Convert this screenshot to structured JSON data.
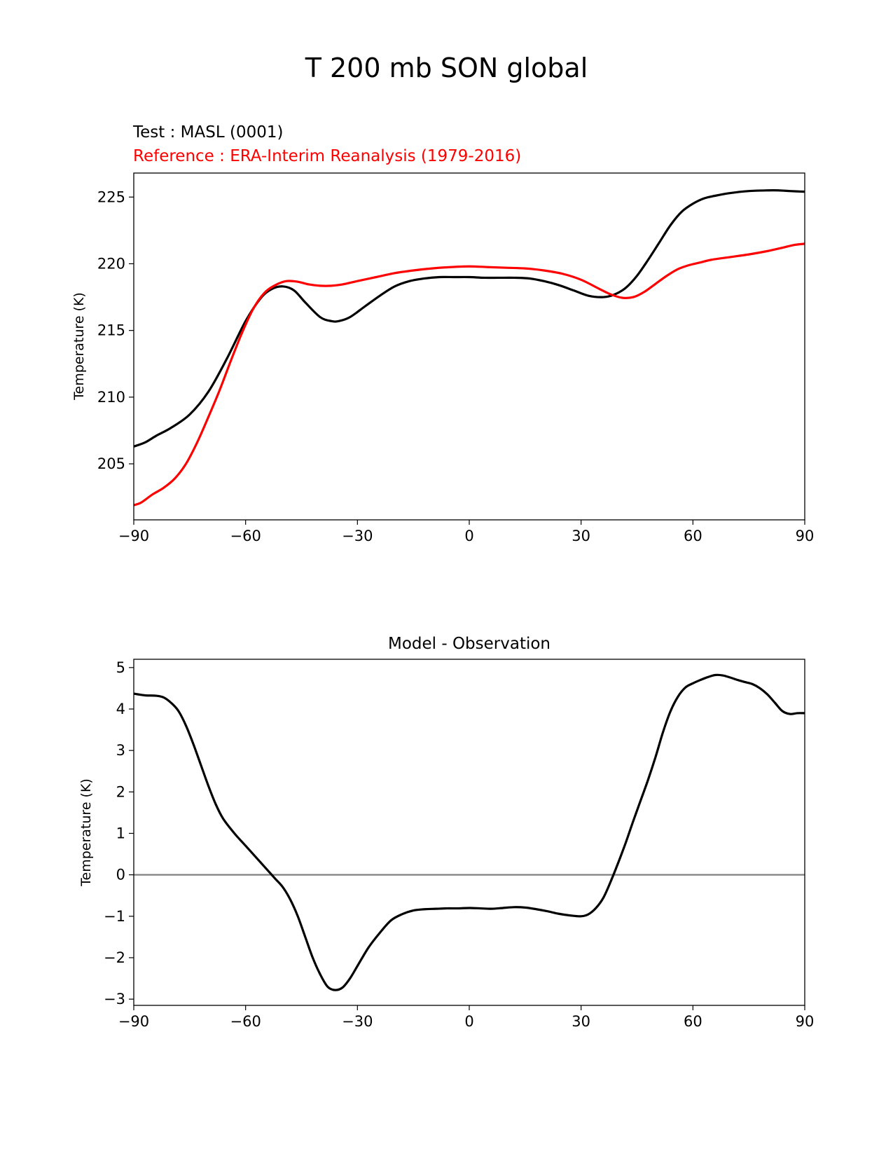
{
  "figure": {
    "title": "T 200 mb SON global"
  },
  "chart_data": [
    {
      "type": "line",
      "title_left": "Test : MASL (0001)",
      "title_left_color": "#000000",
      "title_left_2": "Reference : ERA-Interim Reanalysis (1979-2016)",
      "title_left_2_color": "#ff0000",
      "xlabel": "",
      "ylabel": "Temperature (K)",
      "xlim": [
        -90,
        90
      ],
      "ylim": [
        200.8,
        226.8
      ],
      "xticks": [
        -90,
        -60,
        -30,
        0,
        30,
        60,
        90
      ],
      "xtick_labels": [
        "−90",
        "−60",
        "−30",
        "0",
        "30",
        "60",
        "90"
      ],
      "yticks": [
        205,
        210,
        215,
        220,
        225
      ],
      "ytick_labels": [
        "205",
        "210",
        "215",
        "220",
        "225"
      ],
      "grid": false,
      "series": [
        {
          "color": "#000000",
          "x": [
            -90,
            -87,
            -84,
            -80,
            -75,
            -70,
            -65,
            -60,
            -56,
            -53,
            -50,
            -47,
            -44,
            -40,
            -37,
            -35,
            -32,
            -28,
            -24,
            -20,
            -16,
            -12,
            -8,
            -4,
            0,
            4,
            8,
            12,
            16,
            20,
            24,
            28,
            32,
            36,
            39,
            42,
            45,
            48,
            51,
            54,
            57,
            60,
            63,
            66,
            70,
            75,
            80,
            83,
            86,
            90
          ],
          "y": [
            206.3,
            206.6,
            207.1,
            207.7,
            208.7,
            210.4,
            212.9,
            215.7,
            217.4,
            218.1,
            218.3,
            218.0,
            217.1,
            216.0,
            215.7,
            215.7,
            216.0,
            216.8,
            217.6,
            218.3,
            218.7,
            218.9,
            219.0,
            219.0,
            219.0,
            218.95,
            218.95,
            218.95,
            218.9,
            218.7,
            218.4,
            218.0,
            217.6,
            217.5,
            217.7,
            218.2,
            219.1,
            220.3,
            221.6,
            222.9,
            223.9,
            224.5,
            224.9,
            225.1,
            225.3,
            225.45,
            225.5,
            225.5,
            225.45,
            225.4
          ]
        },
        {
          "color": "#ff0000",
          "x": [
            -90,
            -88,
            -85,
            -82,
            -79,
            -76,
            -73,
            -70,
            -67,
            -64,
            -61,
            -58,
            -55,
            -52,
            -49,
            -46,
            -43,
            -40,
            -37,
            -34,
            -30,
            -25,
            -20,
            -15,
            -10,
            -5,
            0,
            5,
            10,
            15,
            20,
            25,
            30,
            35,
            38,
            41,
            44,
            47,
            50,
            53,
            56,
            59,
            62,
            65,
            70,
            75,
            80,
            84,
            87,
            90
          ],
          "y": [
            201.9,
            202.1,
            202.7,
            203.2,
            203.9,
            205.0,
            206.6,
            208.5,
            210.5,
            212.7,
            214.8,
            216.6,
            217.8,
            218.4,
            218.7,
            218.65,
            218.45,
            218.35,
            218.35,
            218.45,
            218.7,
            219.0,
            219.3,
            219.5,
            219.65,
            219.75,
            219.8,
            219.75,
            219.7,
            219.65,
            219.5,
            219.25,
            218.8,
            218.1,
            217.7,
            217.45,
            217.5,
            217.9,
            218.5,
            219.1,
            219.6,
            219.9,
            220.1,
            220.3,
            220.5,
            220.7,
            220.95,
            221.2,
            221.4,
            221.5
          ]
        }
      ]
    },
    {
      "type": "line",
      "title": "Model - Observation",
      "xlabel": "",
      "ylabel": "Temperature (K)",
      "xlim": [
        -90,
        90
      ],
      "ylim": [
        -3.15,
        5.2
      ],
      "xticks": [
        -90,
        -60,
        -30,
        0,
        30,
        60,
        90
      ],
      "xtick_labels": [
        "−90",
        "−60",
        "−30",
        "0",
        "30",
        "60",
        "90"
      ],
      "yticks": [
        5,
        4,
        3,
        2,
        1,
        0,
        -1,
        -2,
        -3
      ],
      "ytick_labels": [
        "5",
        "4",
        "3",
        "2",
        "1",
        "0",
        "−1",
        "−2",
        "−3"
      ],
      "zero_line": {
        "y": 0,
        "color": "#808080"
      },
      "grid": false,
      "series": [
        {
          "color": "#000000",
          "x": [
            -90,
            -87,
            -84,
            -82,
            -80,
            -78,
            -76,
            -74,
            -72,
            -70,
            -68,
            -66,
            -63,
            -60,
            -57,
            -54,
            -52,
            -50,
            -48,
            -46,
            -44,
            -42,
            -40,
            -38,
            -36,
            -34,
            -32,
            -30,
            -27,
            -24,
            -21,
            -18,
            -15,
            -12,
            -9,
            -6,
            -3,
            0,
            3,
            6,
            9,
            12,
            15,
            18,
            21,
            24,
            27,
            30,
            32,
            34,
            36,
            38,
            40,
            42,
            44,
            46,
            48,
            50,
            52,
            54,
            56,
            58,
            60,
            62,
            64,
            66,
            68,
            70,
            72,
            74,
            76,
            78,
            80,
            82,
            84,
            86,
            88,
            90
          ],
          "y": [
            4.37,
            4.33,
            4.32,
            4.28,
            4.15,
            3.95,
            3.6,
            3.15,
            2.65,
            2.15,
            1.7,
            1.35,
            1.0,
            0.7,
            0.4,
            0.1,
            -0.1,
            -0.3,
            -0.6,
            -1.0,
            -1.5,
            -2.0,
            -2.4,
            -2.7,
            -2.78,
            -2.72,
            -2.5,
            -2.2,
            -1.75,
            -1.4,
            -1.1,
            -0.95,
            -0.86,
            -0.83,
            -0.82,
            -0.81,
            -0.81,
            -0.8,
            -0.81,
            -0.82,
            -0.8,
            -0.78,
            -0.79,
            -0.83,
            -0.88,
            -0.94,
            -0.98,
            -1.0,
            -0.95,
            -0.8,
            -0.55,
            -0.15,
            0.3,
            0.78,
            1.3,
            1.8,
            2.3,
            2.85,
            3.45,
            3.95,
            4.3,
            4.52,
            4.62,
            4.7,
            4.77,
            4.82,
            4.81,
            4.76,
            4.7,
            4.65,
            4.6,
            4.5,
            4.35,
            4.15,
            3.95,
            3.88,
            3.9,
            3.9
          ]
        }
      ]
    }
  ]
}
